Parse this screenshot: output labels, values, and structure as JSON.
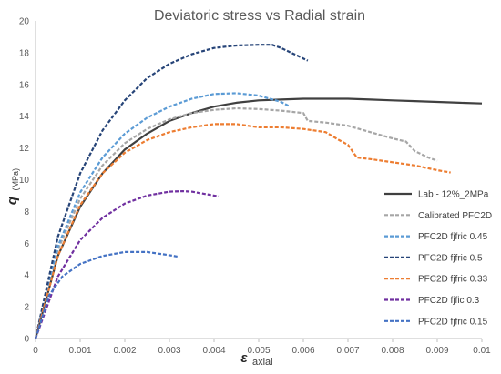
{
  "chart_data": {
    "type": "line",
    "title": "Deviatoric stress vs Radial strain",
    "ylabel_main": "q",
    "ylabel_sub": "(MPa)",
    "xlabel_main": "ε",
    "xlabel_sub": "axial",
    "xlim": [
      0,
      0.01
    ],
    "ylim": [
      0,
      20
    ],
    "xticks": [
      0,
      0.001,
      0.002,
      0.003,
      0.004,
      0.005,
      0.006,
      0.007,
      0.008,
      0.009,
      0.01
    ],
    "yticks": [
      0,
      2,
      4,
      6,
      8,
      10,
      12,
      14,
      16,
      18,
      20
    ],
    "grid": false,
    "legend": "right",
    "series": [
      {
        "name": "Lab - 12%_2MPa",
        "color": "#404040",
        "dash": "solid",
        "x": [
          0,
          0.0005,
          0.001,
          0.0015,
          0.002,
          0.0025,
          0.003,
          0.0035,
          0.004,
          0.0045,
          0.005,
          0.0055,
          0.006,
          0.0065,
          0.007,
          0.0075,
          0.008,
          0.0085,
          0.009,
          0.0095,
          0.01
        ],
        "y": [
          0,
          5.2,
          8.3,
          10.4,
          11.9,
          12.9,
          13.7,
          14.2,
          14.6,
          14.85,
          15.0,
          15.05,
          15.1,
          15.1,
          15.1,
          15.05,
          15.0,
          14.95,
          14.9,
          14.85,
          14.8
        ]
      },
      {
        "name": "Calibrated PFC2D",
        "color": "#a6a6a6",
        "dash": "dashed",
        "x": [
          0,
          0.0005,
          0.001,
          0.0015,
          0.002,
          0.0025,
          0.003,
          0.0035,
          0.004,
          0.0045,
          0.005,
          0.0055,
          0.006,
          0.0061,
          0.0065,
          0.007,
          0.0075,
          0.008,
          0.0083,
          0.0085,
          0.0088,
          0.009
        ],
        "y": [
          0,
          5.6,
          8.8,
          10.9,
          12.3,
          13.2,
          13.8,
          14.2,
          14.4,
          14.5,
          14.45,
          14.35,
          14.2,
          13.7,
          13.6,
          13.4,
          13.0,
          12.6,
          12.4,
          11.8,
          11.4,
          11.2
        ]
      },
      {
        "name": "PFC2D fjfric 0.45",
        "color": "#5b9bd5",
        "dash": "dashed",
        "x": [
          0,
          0.0005,
          0.001,
          0.0015,
          0.002,
          0.0025,
          0.003,
          0.0035,
          0.004,
          0.0045,
          0.005,
          0.0055,
          0.0057
        ],
        "y": [
          0,
          5.8,
          9.2,
          11.4,
          12.9,
          13.9,
          14.6,
          15.1,
          15.4,
          15.45,
          15.3,
          14.9,
          14.6
        ]
      },
      {
        "name": "PFC2D fjfric 0.5",
        "color": "#264478",
        "dash": "dashed",
        "x": [
          0,
          0.0005,
          0.001,
          0.0015,
          0.002,
          0.0025,
          0.003,
          0.0035,
          0.004,
          0.0045,
          0.005,
          0.0053,
          0.0055,
          0.0058,
          0.0061
        ],
        "y": [
          0,
          6.4,
          10.4,
          13.1,
          15.0,
          16.4,
          17.3,
          17.9,
          18.3,
          18.45,
          18.5,
          18.5,
          18.3,
          17.9,
          17.5
        ]
      },
      {
        "name": "PFC2D fjfric 0.33",
        "color": "#ed7d31",
        "dash": "dashed",
        "x": [
          0,
          0.0005,
          0.001,
          0.0015,
          0.002,
          0.0025,
          0.003,
          0.0035,
          0.004,
          0.0045,
          0.005,
          0.0055,
          0.006,
          0.0065,
          0.0068,
          0.007,
          0.0072,
          0.0075,
          0.008,
          0.0085,
          0.009,
          0.0093
        ],
        "y": [
          0,
          5.2,
          8.4,
          10.4,
          11.7,
          12.5,
          13.0,
          13.3,
          13.5,
          13.5,
          13.3,
          13.3,
          13.2,
          13.0,
          12.5,
          12.2,
          11.4,
          11.3,
          11.1,
          10.9,
          10.6,
          10.45
        ]
      },
      {
        "name": "PFC2D fjfic 0.3",
        "color": "#7030a0",
        "dash": "dashed",
        "x": [
          0,
          0.0005,
          0.001,
          0.0015,
          0.002,
          0.0025,
          0.003,
          0.0033,
          0.0035,
          0.004,
          0.0041
        ],
        "y": [
          0,
          3.9,
          6.2,
          7.6,
          8.5,
          9.0,
          9.25,
          9.28,
          9.25,
          9.0,
          8.95
        ]
      },
      {
        "name": "PFC2D fjfric 0.15",
        "color": "#4472c4",
        "dash": "dashed",
        "x": [
          0,
          0.0003,
          0.0006,
          0.001,
          0.0015,
          0.002,
          0.0025,
          0.003,
          0.0032
        ],
        "y": [
          0,
          2.7,
          3.9,
          4.7,
          5.2,
          5.45,
          5.45,
          5.25,
          5.15
        ]
      }
    ]
  }
}
